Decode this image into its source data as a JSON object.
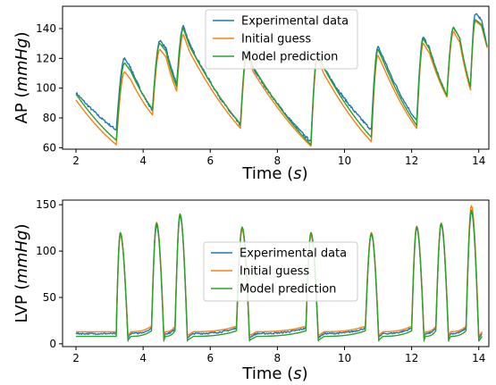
{
  "chart_data": [
    {
      "type": "line",
      "xlabel": "Time",
      "xlabel_unit": "s",
      "ylabel": "AP",
      "ylabel_unit": "mmHg",
      "xlim": [
        1.6,
        14.3
      ],
      "ylim": [
        59,
        155
      ],
      "xticks": [
        2,
        4,
        6,
        8,
        10,
        12,
        14
      ],
      "yticks": [
        60,
        80,
        100,
        120,
        140
      ],
      "grid": false,
      "legend_position": "top-center",
      "beats": [
        {
          "t_start": 2.0,
          "t_sys": 3.2,
          "t_peak": 3.45,
          "t_end": 4.2
        },
        {
          "t_start": 4.2,
          "t_sys": 4.28,
          "t_peak": 4.5,
          "t_end": 4.9
        },
        {
          "t_start": 4.9,
          "t_sys": 5.0,
          "t_peak": 5.2,
          "t_end": 6.85
        },
        {
          "t_start": 6.85,
          "t_sys": 6.9,
          "t_peak": 7.1,
          "t_end": 8.95
        },
        {
          "t_start": 8.95,
          "t_sys": 9.0,
          "t_peak": 9.2,
          "t_end": 10.75
        },
        {
          "t_start": 10.75,
          "t_sys": 10.8,
          "t_peak": 11.0,
          "t_end": 12.1
        },
        {
          "t_start": 12.1,
          "t_sys": 12.15,
          "t_peak": 12.35,
          "t_end": 13.0
        },
        {
          "t_start": 13.0,
          "t_sys": 13.05,
          "t_peak": 13.25,
          "t_end": 13.7
        },
        {
          "t_start": 13.7,
          "t_sys": 13.75,
          "t_peak": 13.9,
          "t_end": 14.25
        }
      ],
      "series": [
        {
          "name": "Experimental data",
          "color": "#1f77b4",
          "noisy": true,
          "start": [
            97
          ],
          "beat_values": [
            {
              "dia": 72,
              "peak": 120
            },
            {
              "dia": 85,
              "peak": 132
            },
            {
              "dia": 103,
              "peak": 142
            },
            {
              "dia": 75,
              "peak": 124
            },
            {
              "dia": 64,
              "peak": 123
            },
            {
              "dia": 72,
              "peak": 128
            },
            {
              "dia": 78,
              "peak": 134
            },
            {
              "dia": 95,
              "peak": 141
            },
            {
              "dia": 100,
              "peak": 150
            }
          ],
          "end": 128
        },
        {
          "name": "Initial guess",
          "color": "#ff7f0e",
          "noisy": false,
          "start": [
            92
          ],
          "beat_values": [
            {
              "dia": 62,
              "peak": 111
            },
            {
              "dia": 82,
              "peak": 126
            },
            {
              "dia": 98,
              "peak": 136
            },
            {
              "dia": 73,
              "peak": 122
            },
            {
              "dia": 61,
              "peak": 120
            },
            {
              "dia": 64,
              "peak": 122
            },
            {
              "dia": 73,
              "peak": 130
            },
            {
              "dia": 94,
              "peak": 138
            },
            {
              "dia": 99,
              "peak": 145
            }
          ],
          "end": 127
        },
        {
          "name": "Model prediction",
          "color": "#2ca02c",
          "noisy": false,
          "start": [
            96
          ],
          "beat_values": [
            {
              "dia": 65,
              "peak": 117
            },
            {
              "dia": 86,
              "peak": 130
            },
            {
              "dia": 101,
              "peak": 140
            },
            {
              "dia": 76,
              "peak": 126
            },
            {
              "dia": 62,
              "peak": 124
            },
            {
              "dia": 67,
              "peak": 126
            },
            {
              "dia": 75,
              "peak": 133
            },
            {
              "dia": 95,
              "peak": 141
            },
            {
              "dia": 101,
              "peak": 146
            }
          ],
          "end": 128
        }
      ]
    },
    {
      "type": "line",
      "xlabel": "Time",
      "xlabel_unit": "s",
      "ylabel": "LVP",
      "ylabel_unit": "mmHg",
      "xlim": [
        1.6,
        14.3
      ],
      "ylim": [
        -3,
        155
      ],
      "xticks": [
        2,
        4,
        6,
        8,
        10,
        12,
        14
      ],
      "yticks": [
        0,
        50,
        100,
        150
      ],
      "grid": false,
      "legend_position": "center",
      "pulses": [
        {
          "t_up": 3.2,
          "t_peak": 3.32,
          "t_down": 3.45,
          "t_base": 3.55
        },
        {
          "t_up": 4.25,
          "t_peak": 4.4,
          "t_down": 4.52,
          "t_base": 4.62
        },
        {
          "t_up": 4.95,
          "t_peak": 5.1,
          "t_down": 5.22,
          "t_base": 5.32
        },
        {
          "t_up": 6.78,
          "t_peak": 6.95,
          "t_down": 7.07,
          "t_base": 7.17
        },
        {
          "t_up": 8.85,
          "t_peak": 9.0,
          "t_down": 9.12,
          "t_base": 9.22
        },
        {
          "t_up": 10.62,
          "t_peak": 10.8,
          "t_down": 10.92,
          "t_base": 11.02
        },
        {
          "t_up": 12.0,
          "t_peak": 12.15,
          "t_down": 12.27,
          "t_base": 12.37
        },
        {
          "t_up": 12.72,
          "t_peak": 12.88,
          "t_down": 13.0,
          "t_base": 13.1
        },
        {
          "t_up": 13.62,
          "t_peak": 13.78,
          "t_down": 13.9,
          "t_base": 14.0
        }
      ],
      "series": [
        {
          "name": "Experimental data",
          "color": "#1f77b4",
          "noisy": true,
          "baseline": 11,
          "peaks": [
            118,
            128,
            138,
            125,
            118,
            118,
            125,
            128,
            142
          ]
        },
        {
          "name": "Initial guess",
          "color": "#ff7f0e",
          "noisy": false,
          "baseline": 13,
          "peaks": [
            117,
            131,
            140,
            123,
            117,
            120,
            127,
            130,
            149
          ]
        },
        {
          "name": "Model prediction",
          "color": "#2ca02c",
          "noisy": false,
          "baseline": 8,
          "peaks": [
            120,
            130,
            140,
            126,
            120,
            119,
            126,
            130,
            144
          ]
        }
      ]
    }
  ]
}
